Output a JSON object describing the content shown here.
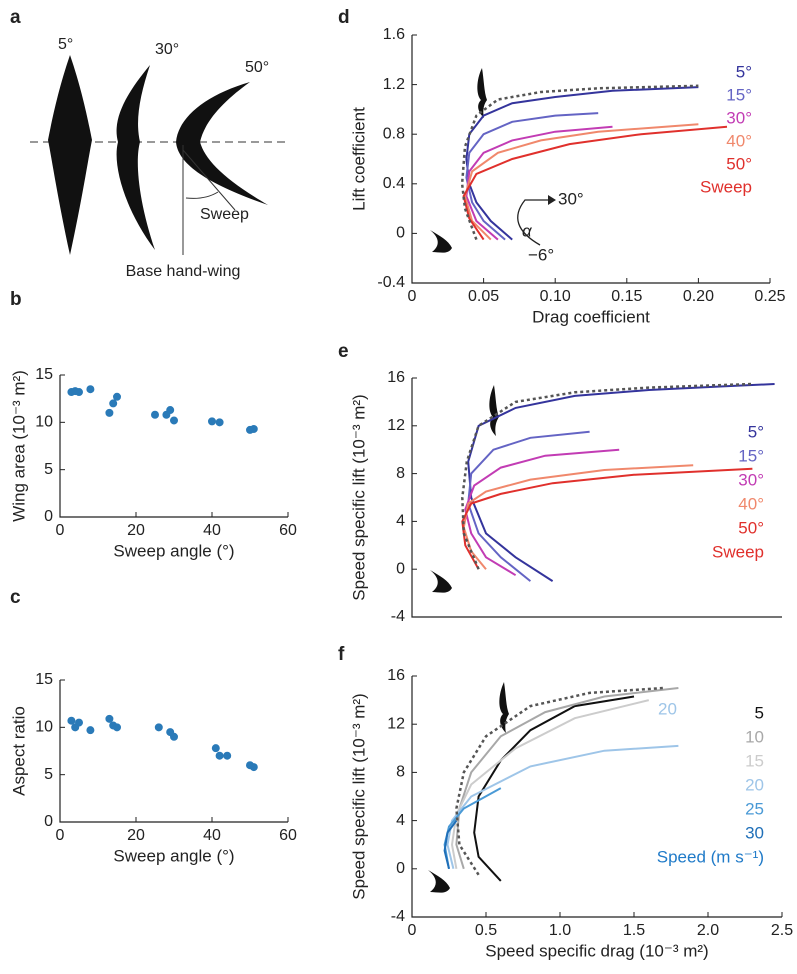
{
  "panel_a": {
    "panel": "a",
    "angles": [
      "5°",
      "30°",
      "50°"
    ],
    "sweep_label": "Sweep",
    "base_label": "Base hand-wing"
  },
  "chart_data": [
    {
      "type": "scatter",
      "panel": "b",
      "xlabel": "Sweep angle (°)",
      "ylabel": "Wing area (10⁻³ m²)",
      "color": "#2a7ab8",
      "x": [
        3,
        4,
        5,
        8,
        13,
        14,
        15,
        25,
        28,
        29,
        30,
        40,
        42,
        50,
        51
      ],
      "values": [
        13.2,
        13.3,
        13.2,
        13.5,
        11,
        12,
        12.7,
        10.8,
        10.8,
        11.3,
        10.2,
        10.1,
        10,
        9.2,
        9.3
      ],
      "xlim": [
        0,
        60
      ],
      "xticks": [
        0,
        20,
        40,
        60
      ],
      "ylim": [
        0,
        15
      ],
      "yticks": [
        0,
        5,
        10,
        15
      ]
    },
    {
      "type": "scatter",
      "panel": "c",
      "xlabel": "Sweep angle (°)",
      "ylabel": "Aspect ratio",
      "color": "#2a7ab8",
      "x": [
        3,
        4,
        5,
        8,
        13,
        14,
        15,
        26,
        29,
        30,
        41,
        42,
        44,
        50,
        51
      ],
      "values": [
        10.7,
        10,
        10.5,
        9.7,
        10.9,
        10.2,
        10,
        10,
        9.5,
        9,
        7.8,
        7,
        7,
        6,
        5.8
      ],
      "xlim": [
        0,
        60
      ],
      "xticks": [
        0,
        20,
        40,
        60
      ],
      "ylim": [
        0,
        15
      ],
      "yticks": [
        0,
        5,
        10,
        15
      ]
    },
    {
      "type": "line",
      "panel": "d",
      "xlabel": "Drag coefficient",
      "ylabel": "Lift coefficient",
      "xlim": [
        0,
        0.25
      ],
      "xticks": [
        0,
        0.05,
        {
          "value": 0.1,
          "label": "0.10"
        },
        0.15,
        {
          "value": 0.2,
          "label": "0.20"
        },
        0.25
      ],
      "ylim": [
        -0.4,
        1.6
      ],
      "yticks": [
        -0.4,
        0,
        0.4,
        0.8,
        1.2,
        1.6
      ],
      "series": [
        {
          "name": "5°",
          "color": "#34349c",
          "x": [
            0.07,
            0.055,
            0.045,
            0.04,
            0.038,
            0.04,
            0.05,
            0.07,
            0.1,
            0.14,
            0.2
          ],
          "values": [
            -0.05,
            0.1,
            0.25,
            0.4,
            0.6,
            0.8,
            0.95,
            1.05,
            1.1,
            1.15,
            1.18
          ]
        },
        {
          "name": "15°",
          "color": "#6464c4",
          "x": [
            0.065,
            0.05,
            0.042,
            0.038,
            0.04,
            0.05,
            0.07,
            0.1,
            0.13
          ],
          "values": [
            -0.05,
            0.1,
            0.25,
            0.45,
            0.65,
            0.8,
            0.9,
            0.95,
            0.97
          ]
        },
        {
          "name": "30°",
          "color": "#c23cb4",
          "x": [
            0.06,
            0.045,
            0.038,
            0.04,
            0.05,
            0.07,
            0.1,
            0.14
          ],
          "values": [
            -0.05,
            0.1,
            0.3,
            0.5,
            0.65,
            0.75,
            0.82,
            0.86
          ]
        },
        {
          "name": "40°",
          "color": "#f0886c",
          "x": [
            0.055,
            0.042,
            0.037,
            0.042,
            0.06,
            0.09,
            0.13,
            0.2
          ],
          "values": [
            -0.05,
            0.1,
            0.3,
            0.5,
            0.65,
            0.75,
            0.82,
            0.88
          ]
        },
        {
          "name": "50°",
          "color": "#e0302c",
          "x": [
            0.05,
            0.04,
            0.036,
            0.045,
            0.07,
            0.11,
            0.16,
            0.22
          ],
          "values": [
            -0.05,
            0.12,
            0.3,
            0.48,
            0.6,
            0.72,
            0.8,
            0.86
          ]
        }
      ],
      "envelope": {
        "color": "#555555",
        "x": [
          0.045,
          0.037,
          0.035,
          0.037,
          0.045,
          0.06,
          0.09,
          0.13,
          0.2
        ],
        "values": [
          -0.05,
          0.2,
          0.4,
          0.7,
          0.95,
          1.08,
          1.14,
          1.17,
          1.19
        ]
      },
      "legend_title": "Sweep",
      "legend_title_color": "#e0302c",
      "annotations": [
        "30°",
        "−6°",
        "α"
      ]
    },
    {
      "type": "line",
      "panel": "e",
      "ylabel": "Speed specific lift (10⁻³ m²)",
      "xlim": [
        0,
        2.5
      ],
      "ylim": [
        -4,
        16
      ],
      "yticks": [
        -4,
        0,
        4,
        8,
        12,
        16
      ],
      "series": [
        {
          "name": "5°",
          "color": "#34349c",
          "x": [
            0.95,
            0.7,
            0.5,
            0.4,
            0.38,
            0.45,
            0.7,
            1.1,
            1.6,
            2.1,
            2.45
          ],
          "values": [
            -1,
            1,
            3,
            6,
            9,
            12,
            13.5,
            14.5,
            15,
            15.3,
            15.5
          ]
        },
        {
          "name": "15°",
          "color": "#6464c4",
          "x": [
            0.8,
            0.6,
            0.45,
            0.38,
            0.4,
            0.55,
            0.8,
            1.2
          ],
          "values": [
            -1,
            1,
            3,
            5.5,
            8,
            10,
            11,
            11.5
          ]
        },
        {
          "name": "30°",
          "color": "#c23cb4",
          "x": [
            0.7,
            0.5,
            0.4,
            0.36,
            0.42,
            0.6,
            0.9,
            1.4
          ],
          "values": [
            -0.5,
            1,
            3,
            5,
            7,
            8.5,
            9.5,
            10
          ]
        },
        {
          "name": "40°",
          "color": "#f0886c",
          "x": [
            0.5,
            0.4,
            0.35,
            0.38,
            0.5,
            0.8,
            1.3,
            1.9
          ],
          "values": [
            0,
            1.5,
            3.5,
            5.5,
            6.5,
            7.5,
            8.3,
            8.7
          ]
        },
        {
          "name": "50°",
          "color": "#e0302c",
          "x": [
            0.45,
            0.36,
            0.34,
            0.4,
            0.6,
            0.95,
            1.5,
            2.3
          ],
          "values": [
            0,
            2,
            4,
            5.5,
            6.3,
            7.2,
            7.9,
            8.4
          ]
        }
      ],
      "envelope": {
        "color": "#555555",
        "x": [
          0.45,
          0.35,
          0.34,
          0.37,
          0.45,
          0.7,
          1.1,
          1.6,
          2.3
        ],
        "values": [
          0,
          3,
          6,
          9,
          12,
          14,
          14.8,
          15.2,
          15.5
        ]
      },
      "legend_title": "Sweep",
      "legend_title_color": "#e0302c"
    },
    {
      "type": "line",
      "panel": "f",
      "xlabel": "Speed specific drag (10⁻³ m²)",
      "ylabel": "Speed specific lift (10⁻³ m²)",
      "xlim": [
        0,
        2.5
      ],
      "xticks": [
        0,
        0.5,
        {
          "value": 1,
          "label": "1.0"
        },
        1.5,
        {
          "value": 2,
          "label": "2.0"
        },
        2.5
      ],
      "ylim": [
        -4,
        16
      ],
      "yticks": [
        -4,
        0,
        4,
        8,
        12,
        16
      ],
      "series": [
        {
          "name": "5",
          "color": "#111111",
          "x": [
            0.6,
            0.45,
            0.42,
            0.45,
            0.6,
            0.8,
            1.1,
            1.5
          ],
          "values": [
            -1,
            1,
            3,
            6,
            9,
            11.5,
            13.5,
            14.3
          ]
        },
        {
          "name": "10",
          "color": "#a8a8a8",
          "x": [
            0.35,
            0.3,
            0.32,
            0.4,
            0.6,
            0.9,
            1.3,
            1.8
          ],
          "values": [
            0,
            2,
            5,
            8,
            11,
            13,
            14.3,
            15
          ]
        },
        {
          "name": "15",
          "color": "#cccccc",
          "x": [
            0.3,
            0.27,
            0.3,
            0.4,
            0.7,
            1.1,
            1.6
          ],
          "values": [
            0,
            2,
            4.5,
            7,
            10,
            12.5,
            14
          ]
        },
        {
          "name": "20",
          "color": "#9ec5e8",
          "x": [
            0.28,
            0.24,
            0.27,
            0.4,
            0.8,
            1.3,
            1.8
          ],
          "values": [
            0,
            2,
            4,
            6,
            8.5,
            9.8,
            10.2
          ]
        },
        {
          "name": "25",
          "color": "#4a9ad6",
          "x": [
            0.25,
            0.22,
            0.25,
            0.35,
            0.6
          ],
          "values": [
            0,
            2,
            3.5,
            5,
            6.7
          ]
        },
        {
          "name": "30",
          "color": "#1f6fb8",
          "x": [
            0.25,
            0.22,
            0.24,
            0.3
          ],
          "values": [
            0,
            1.5,
            3,
            4
          ]
        }
      ],
      "envelope": {
        "color": "#555555",
        "x": [
          0.45,
          0.32,
          0.3,
          0.35,
          0.5,
          0.8,
          1.2,
          1.7
        ],
        "values": [
          -0.5,
          2,
          5,
          8,
          11,
          13.5,
          14.6,
          15
        ]
      },
      "legend_title": "Speed (m s⁻¹)",
      "legend_title_color": "#1f7ac8",
      "annotations": [
        "20"
      ]
    }
  ]
}
